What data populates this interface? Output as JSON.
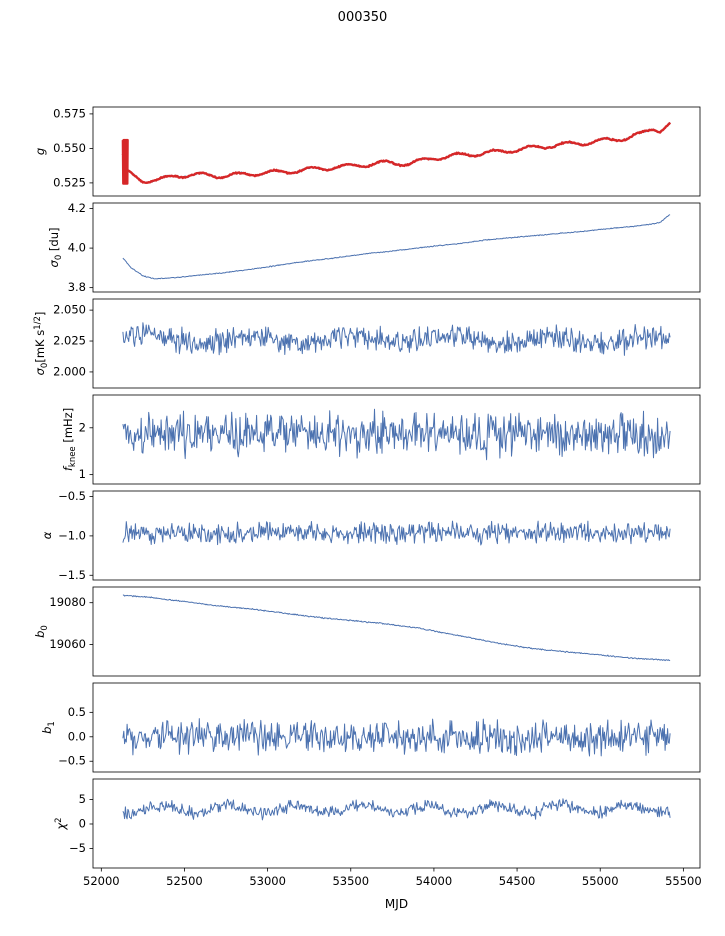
{
  "chart_data": {
    "type": "line",
    "title": "000350",
    "xlabel": "MJD",
    "xlim": [
      51950,
      55600
    ],
    "x_range": [
      52130,
      55420
    ],
    "x_ticks": [
      52000,
      52500,
      53000,
      53500,
      54000,
      54500,
      55000,
      55500
    ],
    "n_points": 660,
    "grid": false,
    "legend": "none",
    "colors": {
      "line": "#4c72b0",
      "overlay": "#d62728",
      "axis": "#000000"
    },
    "panels": [
      {
        "name": "g",
        "ylabel": [
          {
            "t": "g",
            "i": true
          }
        ],
        "yticks": [
          0.525,
          0.55,
          0.575
        ],
        "ytick_labels": [
          "0.525",
          "0.550",
          "0.575"
        ],
        "ylim": [
          0.5155,
          0.58
        ],
        "series": [
          {
            "name": "g-model-line",
            "color": "#4c72b0",
            "width": 1.2,
            "seed": 11,
            "noise": 0.0008,
            "wiggle": {
              "amp": 0.0015,
              "period": 220,
              "phase": 1.0
            },
            "trend": [
              [
                52130,
                0.545
              ],
              [
                52150,
                0.533
              ],
              [
                52250,
                0.5268
              ],
              [
                52350,
                0.527
              ],
              [
                52450,
                0.5305
              ],
              [
                52600,
                0.5308
              ],
              [
                52750,
                0.53
              ],
              [
                52900,
                0.5317
              ],
              [
                53100,
                0.533
              ],
              [
                53300,
                0.5352
              ],
              [
                53500,
                0.5373
              ],
              [
                53700,
                0.5395
              ],
              [
                53850,
                0.539
              ],
              [
                54000,
                0.543
              ],
              [
                54150,
                0.545
              ],
              [
                54300,
                0.5465
              ],
              [
                54500,
                0.549
              ],
              [
                54700,
                0.552
              ],
              [
                54900,
                0.554
              ],
              [
                55050,
                0.556
              ],
              [
                55150,
                0.5575
              ],
              [
                55250,
                0.5605
              ],
              [
                55320,
                0.5645
              ],
              [
                55360,
                0.563
              ],
              [
                55420,
                0.568
              ]
            ]
          },
          {
            "name": "g-data-overlay",
            "color": "#d62728",
            "width": 2.4,
            "seed": 12,
            "noise": 0.0006,
            "wiggle": {
              "amp": 0.0015,
              "period": 220,
              "phase": 1.0
            },
            "spike": {
              "x0": 52130,
              "x1": 52158,
              "ylo": 0.5245,
              "yhi": 0.556
            },
            "trend": [
              [
                52130,
                0.545
              ],
              [
                52150,
                0.533
              ],
              [
                52250,
                0.5268
              ],
              [
                52350,
                0.527
              ],
              [
                52450,
                0.5305
              ],
              [
                52600,
                0.5308
              ],
              [
                52750,
                0.53
              ],
              [
                52900,
                0.5317
              ],
              [
                53100,
                0.533
              ],
              [
                53300,
                0.5352
              ],
              [
                53500,
                0.5373
              ],
              [
                53700,
                0.5395
              ],
              [
                53850,
                0.539
              ],
              [
                54000,
                0.543
              ],
              [
                54150,
                0.545
              ],
              [
                54300,
                0.5465
              ],
              [
                54500,
                0.549
              ],
              [
                54700,
                0.552
              ],
              [
                54900,
                0.554
              ],
              [
                55050,
                0.556
              ],
              [
                55150,
                0.5575
              ],
              [
                55250,
                0.5605
              ],
              [
                55320,
                0.5645
              ],
              [
                55360,
                0.563
              ],
              [
                55420,
                0.568
              ]
            ]
          }
        ]
      },
      {
        "name": "sigma0-du",
        "ylabel": [
          {
            "t": "σ",
            "i": true
          },
          {
            "t": "0",
            "sub": true
          },
          {
            "t": " [du]"
          }
        ],
        "yticks": [
          3.8,
          4.0,
          4.2
        ],
        "ytick_labels": [
          "3.8",
          "4.0",
          "4.2"
        ],
        "ylim": [
          3.778,
          4.228
        ],
        "series": [
          {
            "name": "sigma0-du-line",
            "color": "#4c72b0",
            "width": 1.0,
            "seed": 21,
            "noise": 0.003,
            "trend": [
              [
                52130,
                3.95
              ],
              [
                52180,
                3.9
              ],
              [
                52250,
                3.86
              ],
              [
                52320,
                3.845
              ],
              [
                52400,
                3.848
              ],
              [
                52500,
                3.855
              ],
              [
                52650,
                3.868
              ],
              [
                52800,
                3.882
              ],
              [
                53000,
                3.905
              ],
              [
                53200,
                3.93
              ],
              [
                53400,
                3.95
              ],
              [
                53600,
                3.972
              ],
              [
                53800,
                3.99
              ],
              [
                54000,
                4.01
              ],
              [
                54150,
                4.022
              ],
              [
                54300,
                4.04
              ],
              [
                54500,
                4.055
              ],
              [
                54700,
                4.07
              ],
              [
                54900,
                4.085
              ],
              [
                55050,
                4.098
              ],
              [
                55200,
                4.11
              ],
              [
                55300,
                4.12
              ],
              [
                55360,
                4.13
              ],
              [
                55420,
                4.17
              ]
            ]
          }
        ]
      },
      {
        "name": "sigma0-mks",
        "ylabel": [
          {
            "t": "σ",
            "i": true
          },
          {
            "t": "0",
            "sub": true
          },
          {
            "t": "[mK s"
          },
          {
            "t": "1/2",
            "sup": true
          },
          {
            "t": "]"
          }
        ],
        "yticks": [
          2.0,
          2.025,
          2.05
        ],
        "ytick_labels": [
          "2.000",
          "2.025",
          "2.050"
        ],
        "ylim": [
          1.987,
          2.059
        ],
        "series": [
          {
            "name": "sigma0-mks-line",
            "color": "#4c72b0",
            "width": 1.0,
            "seed": 31,
            "noise": 0.012,
            "wiggle": {
              "amp": 0.003,
              "period": 600,
              "phase": 0.5
            },
            "trend": [
              [
                52130,
                2.027
              ],
              [
                55420,
                2.025
              ]
            ]
          }
        ]
      },
      {
        "name": "fknee",
        "ylabel": [
          {
            "t": "f",
            "i": true
          },
          {
            "t": "knee",
            "sub": true
          },
          {
            "t": " [mHz]"
          }
        ],
        "yticks": [
          1,
          2
        ],
        "ytick_labels": [
          "1",
          "2"
        ],
        "ylim": [
          0.8,
          2.7
        ],
        "series": [
          {
            "name": "fknee-line",
            "color": "#4c72b0",
            "width": 1.0,
            "seed": 41,
            "noise": 0.55,
            "trend": [
              [
                52130,
                1.88
              ],
              [
                55420,
                1.85
              ]
            ]
          }
        ]
      },
      {
        "name": "alpha",
        "ylabel": [
          {
            "t": "α",
            "i": true
          }
        ],
        "yticks": [
          -0.5,
          -1.0,
          -1.5
        ],
        "ytick_labels": [
          "−0.5",
          "−1.0",
          "−1.5"
        ],
        "ylim": [
          -1.56,
          -0.43
        ],
        "series": [
          {
            "name": "alpha-line",
            "color": "#4c72b0",
            "width": 1.0,
            "seed": 51,
            "noise": 0.16,
            "trend": [
              [
                52130,
                -0.96
              ],
              [
                55420,
                -0.96
              ]
            ]
          }
        ]
      },
      {
        "name": "b0",
        "ylabel": [
          {
            "t": "b",
            "i": true
          },
          {
            "t": "0",
            "sub": true
          }
        ],
        "yticks": [
          19060,
          19080
        ],
        "ytick_labels": [
          "19060",
          "19080"
        ],
        "ylim": [
          19045,
          19087.5
        ],
        "series": [
          {
            "name": "b0-line",
            "color": "#4c72b0",
            "width": 1.0,
            "seed": 61,
            "noise": 0.35,
            "trend": [
              [
                52130,
                19083.5
              ],
              [
                52300,
                19082.5
              ],
              [
                52500,
                19080.5
              ],
              [
                52700,
                19078.5
              ],
              [
                52900,
                19077
              ],
              [
                53100,
                19075
              ],
              [
                53300,
                19073
              ],
              [
                53500,
                19071.5
              ],
              [
                53700,
                19070
              ],
              [
                53900,
                19068
              ],
              [
                54000,
                19066.5
              ],
              [
                54200,
                19063.5
              ],
              [
                54400,
                19060.5
              ],
              [
                54600,
                19058
              ],
              [
                54800,
                19056.5
              ],
              [
                55000,
                19055
              ],
              [
                55200,
                19053.5
              ],
              [
                55420,
                19052.5
              ]
            ]
          }
        ]
      },
      {
        "name": "b1",
        "ylabel": [
          {
            "t": "b",
            "i": true
          },
          {
            "t": "1",
            "sub": true
          }
        ],
        "yticks": [
          0.5,
          0.0,
          -0.5
        ],
        "ytick_labels": [
          "0.5",
          "0.0",
          "−0.5"
        ],
        "ylim": [
          -0.72,
          1.1
        ],
        "series": [
          {
            "name": "b1-line",
            "color": "#4c72b0",
            "width": 1.0,
            "seed": 71,
            "noise": 0.4,
            "trend": [
              [
                52130,
                0.0
              ],
              [
                55420,
                0.0
              ]
            ]
          }
        ]
      },
      {
        "name": "chi2",
        "ylabel": [
          {
            "t": "χ",
            "i": true
          },
          {
            "t": "2",
            "sup": true
          }
        ],
        "yticks": [
          5,
          0,
          -5
        ],
        "ytick_labels": [
          "5",
          "0",
          "−5"
        ],
        "ylim": [
          -9,
          9.2
        ],
        "series": [
          {
            "name": "chi2-line",
            "color": "#4c72b0",
            "width": 1.0,
            "seed": 81,
            "noise": 1.5,
            "wiggle": {
              "amp": 0.8,
              "period": 400,
              "phase": 2.0
            },
            "trend": [
              [
                52130,
                3.0
              ],
              [
                55420,
                3.1
              ]
            ]
          }
        ]
      }
    ]
  }
}
